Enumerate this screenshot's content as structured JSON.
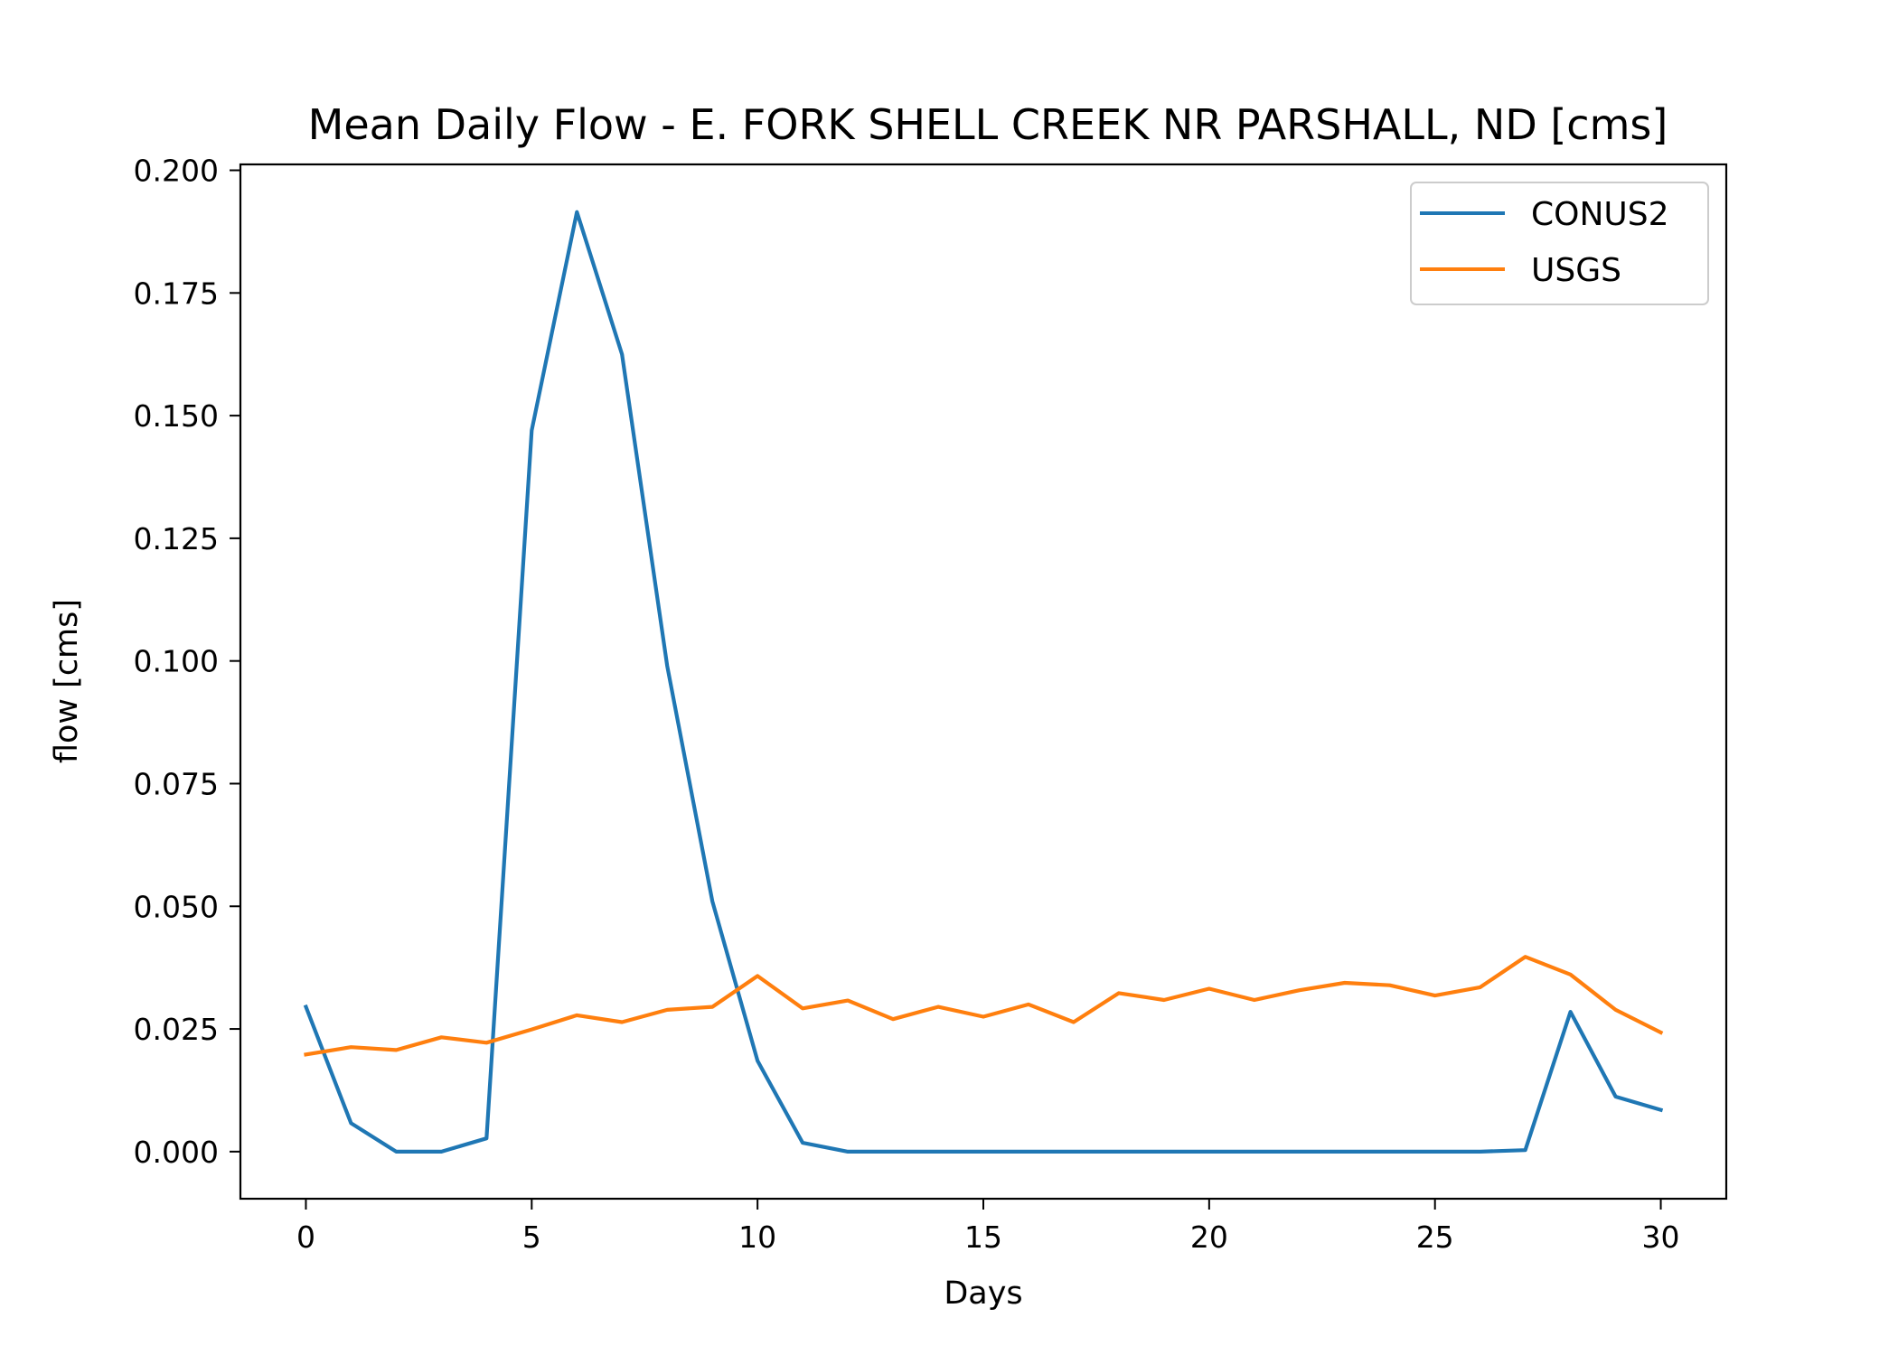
{
  "chart_data": {
    "type": "line",
    "title": "Mean Daily Flow - E. FORK SHELL CREEK NR PARSHALL, ND [cms]",
    "xlabel": "Days",
    "ylabel": "flow [cms]",
    "xlim": [
      -1.45,
      31.45
    ],
    "ylim": [
      -0.0096,
      0.2012
    ],
    "xticks": [
      0,
      5,
      10,
      15,
      20,
      25,
      30
    ],
    "xtick_labels": [
      "0",
      "5",
      "10",
      "15",
      "20",
      "25",
      "30"
    ],
    "yticks": [
      0.0,
      0.025,
      0.05,
      0.075,
      0.1,
      0.125,
      0.15,
      0.175,
      0.2
    ],
    "ytick_labels": [
      "0.000",
      "0.025",
      "0.050",
      "0.075",
      "0.100",
      "0.125",
      "0.150",
      "0.175",
      "0.200"
    ],
    "grid": false,
    "legend": "top-right",
    "x": [
      0,
      1,
      2,
      3,
      4,
      5,
      6,
      7,
      8,
      9,
      10,
      11,
      12,
      13,
      14,
      15,
      16,
      17,
      18,
      19,
      20,
      21,
      22,
      23,
      24,
      25,
      26,
      27,
      28,
      29,
      30
    ],
    "series": [
      {
        "name": "CONUS2",
        "color": "#1f77b4",
        "values": [
          0.0295,
          0.0058,
          0.0,
          0.0,
          0.0027,
          0.147,
          0.1915,
          0.1625,
          0.099,
          0.051,
          0.0185,
          0.0018,
          0.0,
          0.0,
          0.0,
          0.0,
          0.0,
          0.0,
          0.0,
          0.0,
          0.0,
          0.0,
          0.0,
          0.0,
          0.0,
          0.0,
          0.0,
          0.0003,
          0.0285,
          0.0112,
          0.0085
        ]
      },
      {
        "name": "USGS",
        "color": "#ff7f0e",
        "values": [
          0.0198,
          0.0213,
          0.0207,
          0.0233,
          0.0222,
          0.0249,
          0.0278,
          0.0264,
          0.0289,
          0.0295,
          0.0358,
          0.0292,
          0.0308,
          0.027,
          0.0295,
          0.0275,
          0.03,
          0.0264,
          0.0323,
          0.0309,
          0.0332,
          0.0309,
          0.0329,
          0.0344,
          0.0339,
          0.0318,
          0.0335,
          0.0397,
          0.0361,
          0.0289,
          0.0243
        ]
      }
    ]
  }
}
